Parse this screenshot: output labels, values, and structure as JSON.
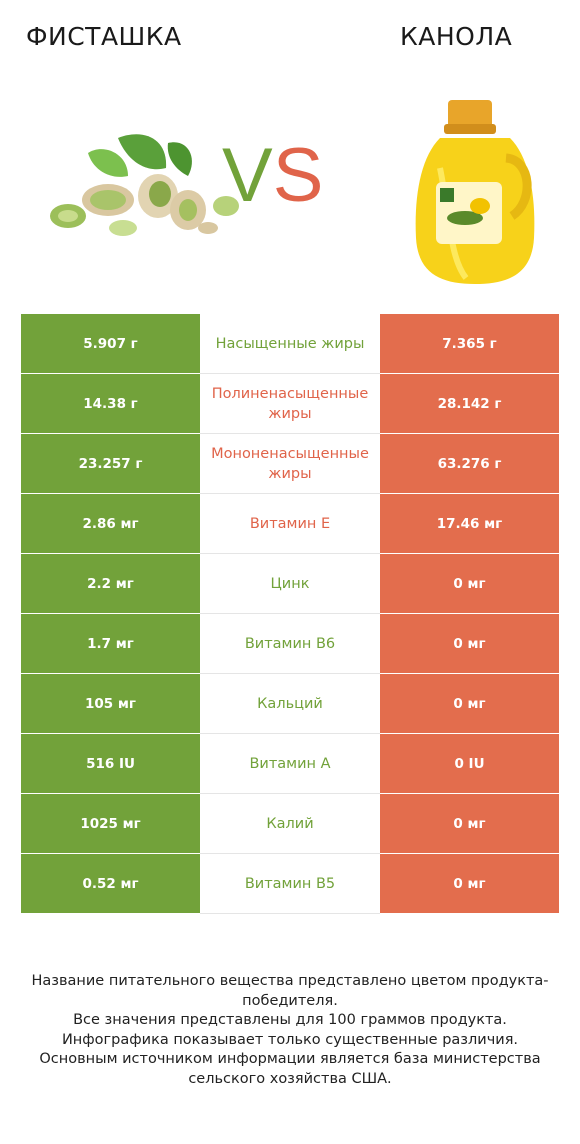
{
  "header": {
    "left_title": "ФИСТАШКА",
    "right_title": "КАНОЛА",
    "vs_v": "V",
    "vs_s": "S"
  },
  "colors": {
    "left": "#72a23a",
    "right": "#e36d4d"
  },
  "rows": [
    {
      "left": "5.907 г",
      "label": "Насыщенные жиры",
      "right": "7.365 г",
      "winner": "left"
    },
    {
      "left": "14.38 г",
      "label": "Полиненасыщенные жиры",
      "right": "28.142 г",
      "winner": "right"
    },
    {
      "left": "23.257 г",
      "label": "Мононенасыщенные жиры",
      "right": "63.276 г",
      "winner": "right"
    },
    {
      "left": "2.86 мг",
      "label": "Витамин E",
      "right": "17.46 мг",
      "winner": "right"
    },
    {
      "left": "2.2 мг",
      "label": "Цинк",
      "right": "0 мг",
      "winner": "left"
    },
    {
      "left": "1.7 мг",
      "label": "Витамин B6",
      "right": "0 мг",
      "winner": "left"
    },
    {
      "left": "105 мг",
      "label": "Кальций",
      "right": "0 мг",
      "winner": "left"
    },
    {
      "left": "516 IU",
      "label": "Витамин A",
      "right": "0 IU",
      "winner": "left"
    },
    {
      "left": "1025 мг",
      "label": "Калий",
      "right": "0 мг",
      "winner": "left"
    },
    {
      "left": "0.52 мг",
      "label": "Витамин B5",
      "right": "0 мг",
      "winner": "left"
    }
  ],
  "footer": {
    "line1": "Название питательного вещества представлено цветом продукта-победителя.",
    "line2": "Все значения представлены для 100 граммов продукта.",
    "line3": "Инфографика показывает только существенные различия.",
    "line4": "Основным источником информации является база министерства сельского хозяйства США."
  }
}
